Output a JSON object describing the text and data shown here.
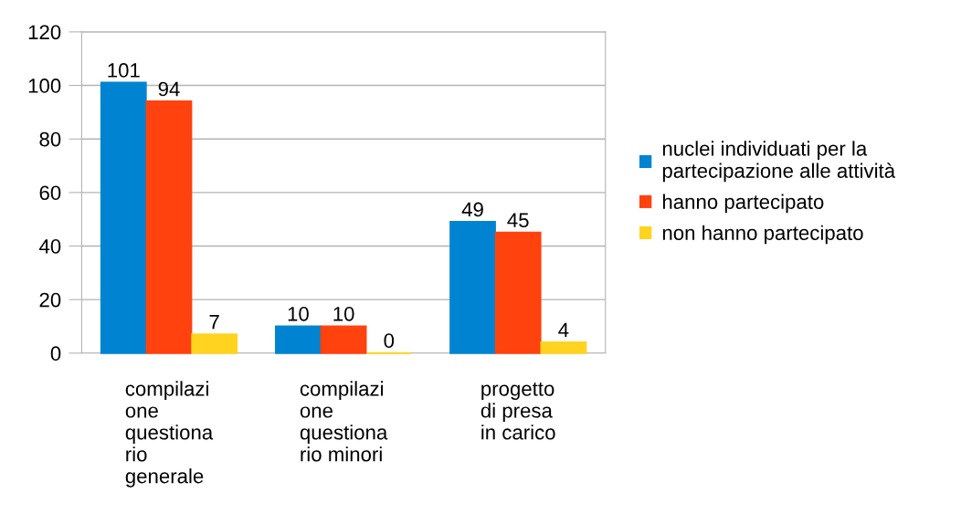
{
  "chart_data": {
    "type": "bar",
    "categories": [
      "compilazi\none\nquestiona\nrio\ngenerale",
      "compilazi\none\nquestiona\nrio minori",
      "progetto\ndi presa\nin carico"
    ],
    "series": [
      {
        "name": "nuclei individuati per la\npartecipazione alle attività",
        "color": "#0084d1",
        "values": [
          101,
          10,
          49
        ]
      },
      {
        "name": "hanno partecipato",
        "color": "#ff420e",
        "values": [
          94,
          10,
          45
        ]
      },
      {
        "name": "non hanno partecipato",
        "color": "#ffd320",
        "values": [
          7,
          0,
          4
        ]
      }
    ],
    "ylim": [
      0,
      120
    ],
    "yticks": [
      0,
      20,
      40,
      60,
      80,
      100,
      120
    ],
    "grid": "y",
    "legend": "right",
    "data_labels": true
  }
}
